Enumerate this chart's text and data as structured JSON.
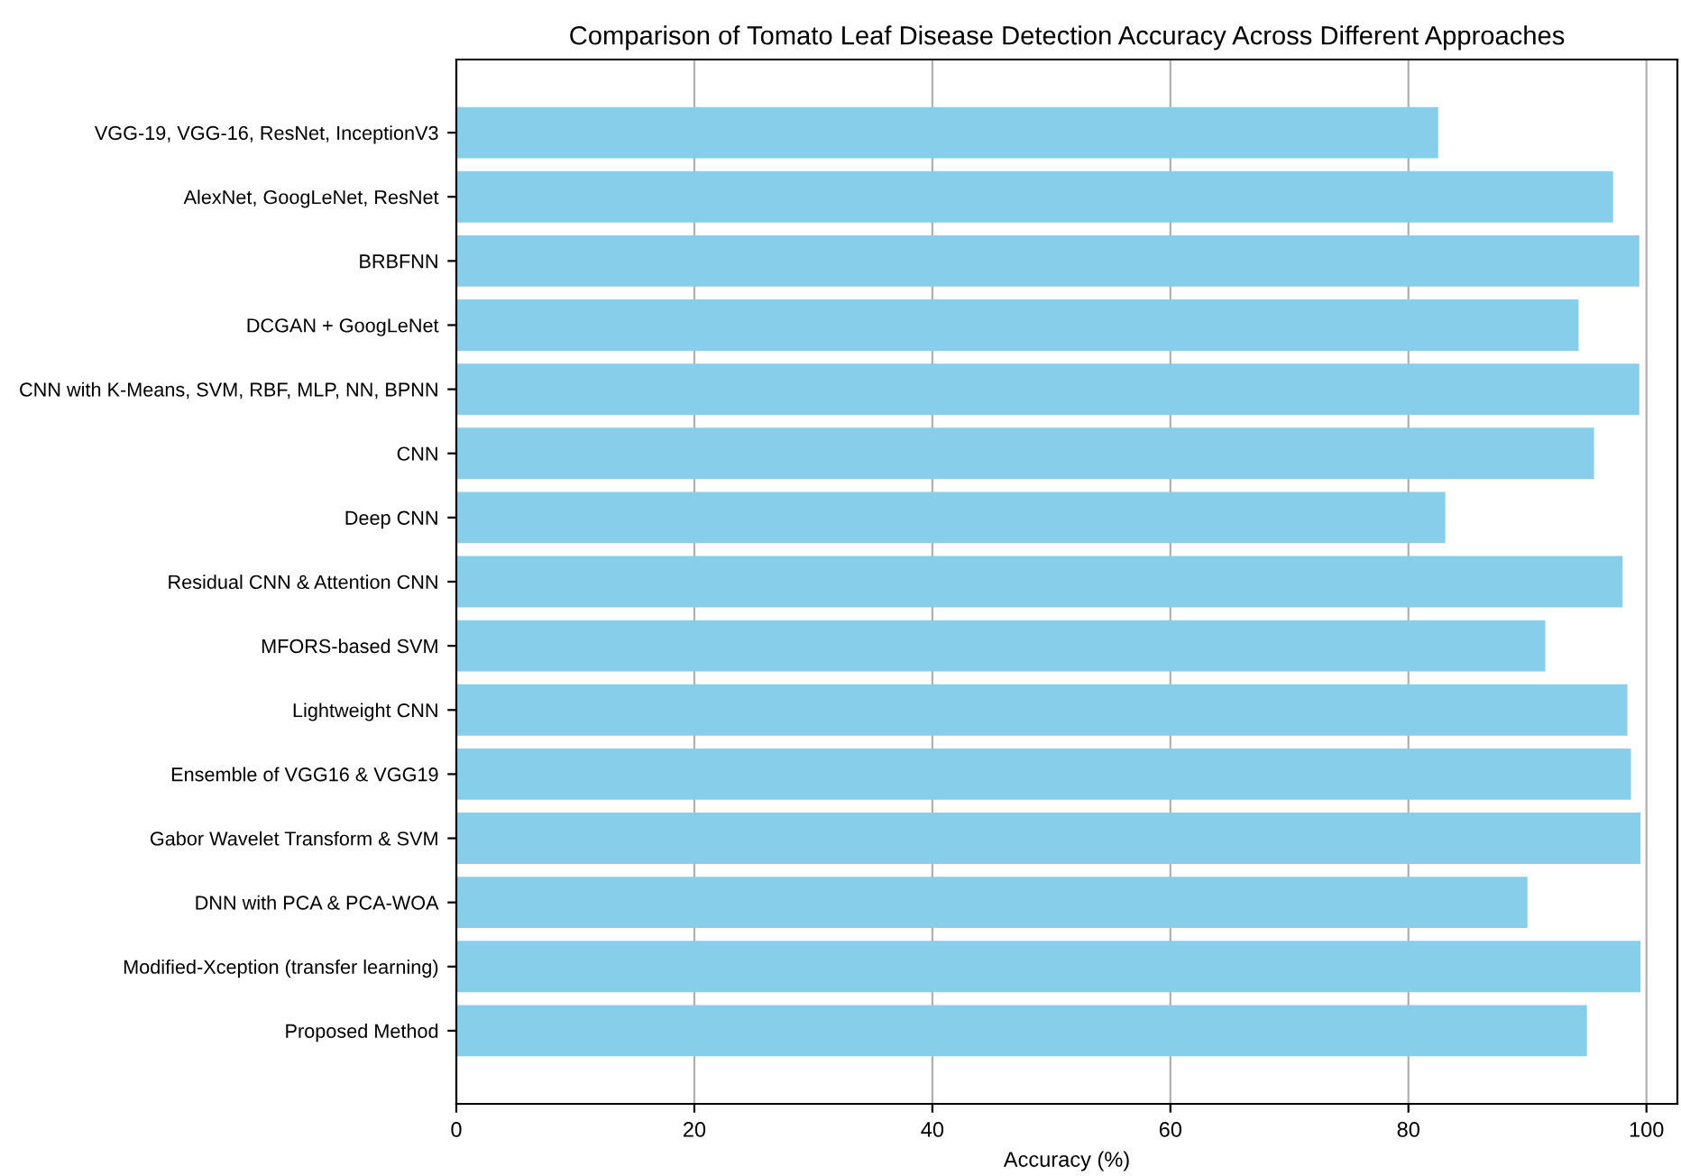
{
  "chart_data": {
    "type": "bar",
    "orientation": "horizontal",
    "title": "Comparison of Tomato Leaf Disease Detection Accuracy Across Different Approaches",
    "xlabel": "Accuracy (%)",
    "categories": [
      "VGG-19, VGG-16, ResNet, InceptionV3",
      "AlexNet, GoogLeNet, ResNet",
      "BRBFNN",
      "DCGAN + GoogLeNet",
      "CNN with K-Means, SVM, RBF, MLP, NN, BPNN",
      "CNN",
      "Deep CNN",
      "Residual CNN & Attention CNN",
      "MFORS-based SVM",
      "Lightweight CNN",
      "Ensemble of VGG16 & VGG19",
      "Gabor Wavelet Transform & SVM",
      "DNN with PCA & PCA-WOA",
      "Modified-Xception (transfer learning)",
      "Proposed Method"
    ],
    "values": [
      82.5,
      97.2,
      99.4,
      94.3,
      99.4,
      95.6,
      83.1,
      98.0,
      91.5,
      98.4,
      98.7,
      99.5,
      90.0,
      99.5,
      95.0
    ],
    "color": "#87ceeb",
    "xlim": [
      0,
      102.6
    ],
    "xticks": [
      0,
      20,
      40,
      60,
      80,
      100
    ],
    "grid": "x"
  }
}
